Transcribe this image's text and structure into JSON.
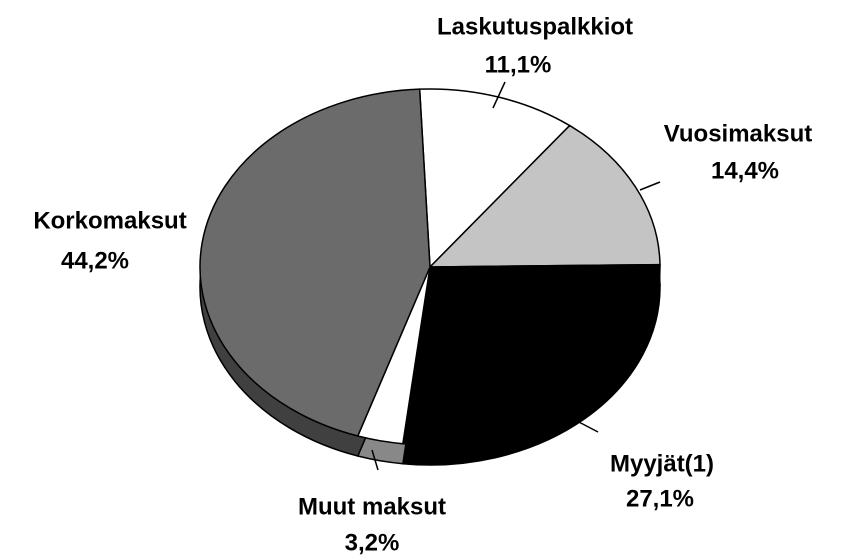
{
  "chart_data": {
    "type": "pie",
    "categories": [
      "Laskutuspalkkiot",
      "Vuosimaksut",
      "Myyjät(1)",
      "Muut maksut",
      "Korkomaksut"
    ],
    "values": [
      11.1,
      14.4,
      27.1,
      3.2,
      44.2
    ],
    "value_labels": [
      "11,1%",
      "14,4%",
      "27,1%",
      "3,2%",
      "44,2%"
    ],
    "colors": [
      "#ffffff",
      "#c4c4c4",
      "#000000",
      "#ffffff",
      "#6b6b6b"
    ]
  }
}
